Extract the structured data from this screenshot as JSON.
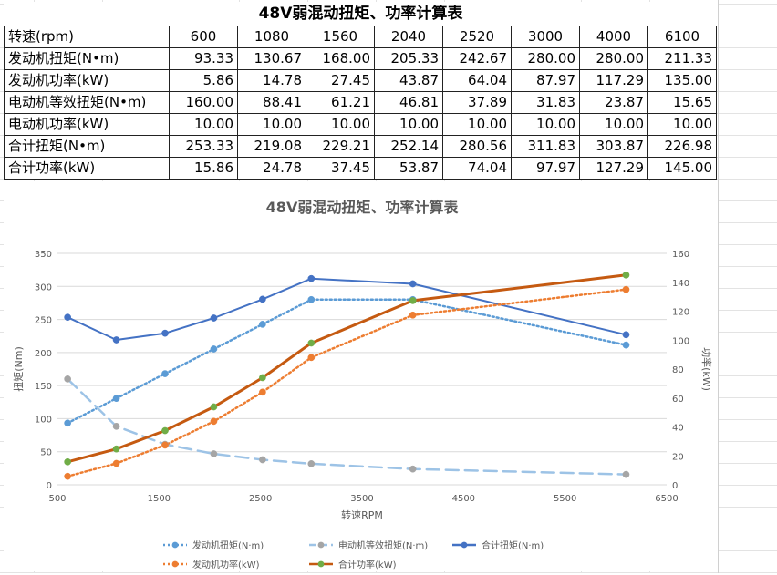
{
  "table": {
    "title": "48V弱混动扭矩、功率计算表",
    "rows": [
      {
        "label": "转速(rpm)",
        "values": [
          "600",
          "1080",
          "1560",
          "2040",
          "2520",
          "3000",
          "4000",
          "6100"
        ]
      },
      {
        "label": "发动机扭矩(N•m)",
        "values": [
          "93.33",
          "130.67",
          "168.00",
          "205.33",
          "242.67",
          "280.00",
          "280.00",
          "211.33"
        ]
      },
      {
        "label": "发动机功率(kW)",
        "values": [
          "5.86",
          "14.78",
          "27.45",
          "43.87",
          "64.04",
          "87.97",
          "117.29",
          "135.00"
        ]
      },
      {
        "label": "电动机等效扭矩(N•m)",
        "values": [
          "160.00",
          "88.41",
          "61.21",
          "46.81",
          "37.89",
          "31.83",
          "23.87",
          "15.65"
        ]
      },
      {
        "label": "电动机功率(kW)",
        "values": [
          "10.00",
          "10.00",
          "10.00",
          "10.00",
          "10.00",
          "10.00",
          "10.00",
          "10.00"
        ]
      },
      {
        "label": "合计扭矩(N•m)",
        "values": [
          "253.33",
          "219.08",
          "229.21",
          "252.14",
          "280.56",
          "311.83",
          "303.87",
          "226.98"
        ]
      },
      {
        "label": "合计功率(kW)",
        "values": [
          "15.86",
          "24.78",
          "37.45",
          "53.87",
          "74.04",
          "97.97",
          "127.29",
          "145.00"
        ]
      }
    ]
  },
  "chart_data": {
    "type": "line",
    "title": "48V弱混动扭矩、功率计算表",
    "xlabel": "转速RPM",
    "ylabel": "扭矩(Nm)",
    "y2label": "功率(kW)",
    "xlim": [
      500,
      6500
    ],
    "xticks": [
      500,
      1500,
      2500,
      3500,
      4500,
      5500,
      6500
    ],
    "ylim": [
      0,
      350
    ],
    "yticks": [
      0,
      50,
      100,
      150,
      200,
      250,
      300,
      350
    ],
    "y2lim": [
      0,
      160
    ],
    "y2ticks": [
      0,
      20,
      40,
      60,
      80,
      100,
      120,
      140,
      160
    ],
    "grid": true,
    "legend_position": "bottom",
    "x": [
      600,
      1080,
      1560,
      2040,
      2520,
      3000,
      4000,
      6100
    ],
    "series": [
      {
        "name": "发动机扭矩(N·m)",
        "axis": "left",
        "style": "dotted",
        "color": "#5B9BD5",
        "values": [
          93.33,
          130.67,
          168.0,
          205.33,
          242.67,
          280.0,
          280.0,
          211.33
        ]
      },
      {
        "name": "电动机等效扭矩(N·m)",
        "axis": "left",
        "style": "dashed",
        "color": "#9DC3E6",
        "marker_color": "#A5A5A5",
        "values": [
          160.0,
          88.41,
          61.21,
          46.81,
          37.89,
          31.83,
          23.87,
          15.65
        ]
      },
      {
        "name": "合计扭矩(N·m)",
        "axis": "left",
        "style": "solid",
        "color": "#4472C4",
        "values": [
          253.33,
          219.08,
          229.21,
          252.14,
          280.56,
          311.83,
          303.87,
          226.98
        ]
      },
      {
        "name": "发动机功率(kW)",
        "axis": "right",
        "style": "dotted",
        "color": "#ED7D31",
        "values": [
          5.86,
          14.78,
          27.45,
          43.87,
          64.04,
          87.97,
          117.29,
          135.0
        ]
      },
      {
        "name": "合计功率(kW)",
        "axis": "right",
        "style": "solid",
        "color": "#C55A11",
        "marker_color": "#70AD47",
        "values": [
          15.86,
          24.78,
          37.45,
          53.87,
          74.04,
          97.97,
          127.29,
          145.0
        ]
      }
    ]
  }
}
